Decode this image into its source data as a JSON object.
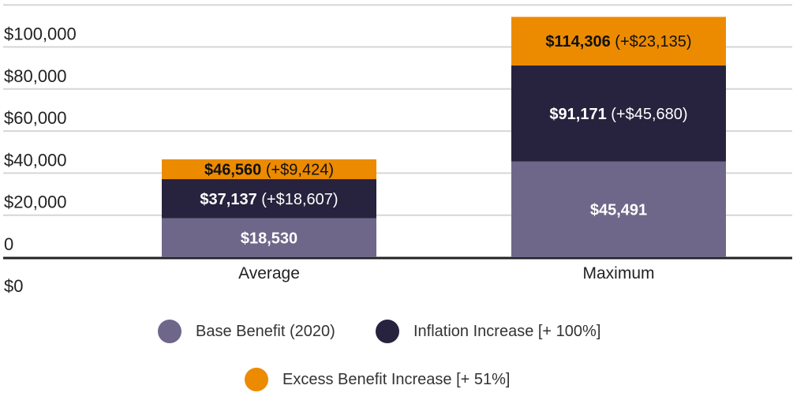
{
  "chart_data": {
    "type": "bar",
    "stacked": true,
    "categories": [
      "Average",
      "Maximum"
    ],
    "series": [
      {
        "name": "Base Benefit (2020)",
        "values": [
          18530,
          45491
        ],
        "color": "#6e6789",
        "labels": [
          "$18,530",
          "$45,491"
        ],
        "increments": [
          "",
          ""
        ]
      },
      {
        "name": "Inflation Increase [+ 100%]",
        "values": [
          18607,
          45680
        ],
        "color": "#27223d",
        "labels": [
          "$37,137",
          "$91,171"
        ],
        "increments": [
          "(+$18,607)",
          "(+$45,680)"
        ]
      },
      {
        "name": "Excess Benefit Increase [+ 51%]",
        "values": [
          9424,
          23135
        ],
        "color": "#ec8b00",
        "labels": [
          "$46,560",
          "$114,306"
        ],
        "increments": [
          "(+$9,424)",
          "(+$23,135)"
        ]
      }
    ],
    "yticks": [
      0,
      20000,
      40000,
      60000,
      80000,
      100000,
      120000
    ],
    "ytick_labels": [
      "0",
      "$20,000",
      "$40,000",
      "$60,000",
      "$80,000",
      "$100,000",
      ""
    ],
    "baseline_label": "$0",
    "ylim": [
      0,
      120000
    ],
    "grid": true,
    "legend_position": "bottom"
  }
}
